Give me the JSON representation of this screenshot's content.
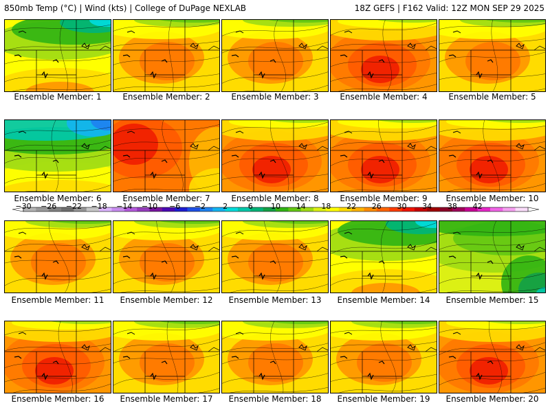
{
  "header": {
    "left": "850mb Temp (°C) | Wind (kts) | College of DuPage NEXLAB",
    "right": "18Z GEFS | F162 Valid: 12Z MON SEP 29 2025"
  },
  "colorbar": {
    "tick_labels": [
      "-30",
      "-26",
      "-22",
      "-18",
      "-14",
      "-10",
      "-6",
      "-2",
      "2",
      "6",
      "10",
      "14",
      "18",
      "22",
      "26",
      "30",
      "34",
      "38",
      "42"
    ],
    "colors": [
      "#b4b4b4",
      "#9a9a9a",
      "#828282",
      "#6e6e6e",
      "#969696",
      "#c8c8c8",
      "#dcb4ff",
      "#c88cf0",
      "#b45adc",
      "#963cbe",
      "#7814a0",
      "#4b0ab4",
      "#1e1ed2",
      "#1e50e6",
      "#1e82f0",
      "#14b4f0",
      "#00dcdc",
      "#00c8aa",
      "#00b478",
      "#14a046",
      "#32b414",
      "#64c814",
      "#a0dc14",
      "#dcf014",
      "#ffff00",
      "#ffdc00",
      "#ffb400",
      "#ff8c00",
      "#ff6400",
      "#ff3c00",
      "#f01400",
      "#c80000",
      "#a00000",
      "#8c0028",
      "#a0005a",
      "#c80096",
      "#e628c8",
      "#f064e6",
      "#f5a0f0",
      "#fadcfa"
    ]
  },
  "members": [
    {
      "label": "Ensemble Member: 1",
      "scenario": "cool"
    },
    {
      "label": "Ensemble Member: 2",
      "scenario": "warm"
    },
    {
      "label": "Ensemble Member: 3",
      "scenario": "warm"
    },
    {
      "label": "Ensemble Member: 4",
      "scenario": "hot"
    },
    {
      "label": "Ensemble Member: 5",
      "scenario": "warm"
    },
    {
      "label": "Ensemble Member: 6",
      "scenario": "cold"
    },
    {
      "label": "Ensemble Member: 7",
      "scenario": "hotwest"
    },
    {
      "label": "Ensemble Member: 8",
      "scenario": "hot"
    },
    {
      "label": "Ensemble Member: 9",
      "scenario": "hot"
    },
    {
      "label": "Ensemble Member: 10",
      "scenario": "hot"
    },
    {
      "label": "Ensemble Member: 11",
      "scenario": "warm"
    },
    {
      "label": "Ensemble Member: 12",
      "scenario": "warm"
    },
    {
      "label": "Ensemble Member: 13",
      "scenario": "warm"
    },
    {
      "label": "Ensemble Member: 14",
      "scenario": "cool"
    },
    {
      "label": "Ensemble Member: 15",
      "scenario": "coolsw"
    },
    {
      "label": "Ensemble Member: 16",
      "scenario": "hot"
    },
    {
      "label": "Ensemble Member: 17",
      "scenario": "warm"
    },
    {
      "label": "Ensemble Member: 18",
      "scenario": "warm"
    },
    {
      "label": "Ensemble Member: 19",
      "scenario": "warm"
    },
    {
      "label": "Ensemble Member: 20",
      "scenario": "hot"
    }
  ]
}
